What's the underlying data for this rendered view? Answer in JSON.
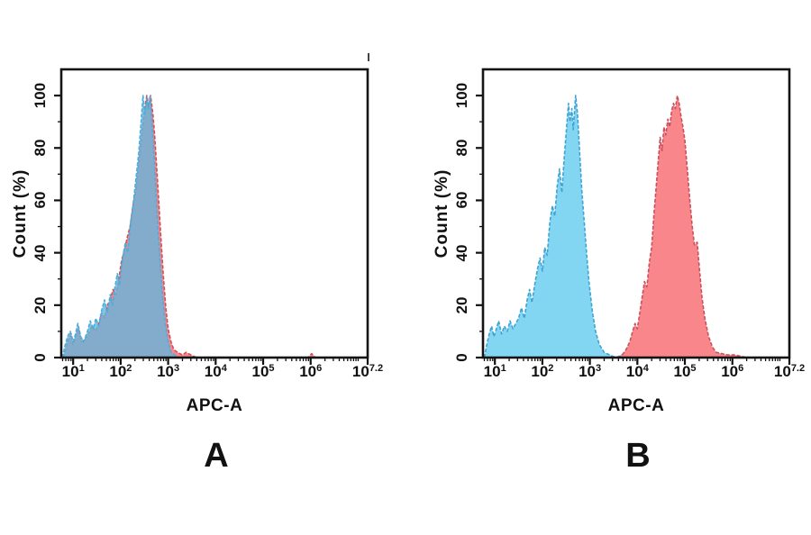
{
  "figure": {
    "background": "#ffffff",
    "text_color": "#111111"
  },
  "chart_data": [
    {
      "type": "area",
      "panel_label": "A",
      "xlabel": "APC-A",
      "ylabel": "Count (%)",
      "x_scale": "log10",
      "x_log_range": [
        0.75,
        7.2
      ],
      "y_range": [
        0,
        110
      ],
      "grid": false,
      "legend": "none",
      "x_major_ticks": [
        {
          "log": 1,
          "base": "10",
          "exp": "1"
        },
        {
          "log": 2,
          "base": "10",
          "exp": "2"
        },
        {
          "log": 3,
          "base": "10",
          "exp": "3"
        },
        {
          "log": 4,
          "base": "10",
          "exp": "4"
        },
        {
          "log": 5,
          "base": "10",
          "exp": "5"
        },
        {
          "log": 6,
          "base": "10",
          "exp": "6"
        },
        {
          "log": 7.2,
          "base": "10",
          "exp": "7.2"
        }
      ],
      "y_major_ticks": [
        "0",
        "20",
        "40",
        "60",
        "80",
        "100"
      ],
      "y_major_values": [
        0,
        20,
        40,
        60,
        80,
        100
      ],
      "y_minor_values": [
        10,
        30,
        50,
        70,
        90
      ],
      "series": [
        {
          "name": "red-histogram",
          "fill": "#F8868B",
          "edge": "#C9515D",
          "points": [
            [
              0.8,
              0
            ],
            [
              0.84,
              3
            ],
            [
              0.9,
              7
            ],
            [
              0.96,
              9
            ],
            [
              1.0,
              5
            ],
            [
              1.06,
              9
            ],
            [
              1.12,
              11
            ],
            [
              1.18,
              6
            ],
            [
              1.25,
              7
            ],
            [
              1.32,
              9
            ],
            [
              1.4,
              12
            ],
            [
              1.47,
              10
            ],
            [
              1.54,
              13
            ],
            [
              1.6,
              17
            ],
            [
              1.66,
              15
            ],
            [
              1.72,
              20
            ],
            [
              1.78,
              22
            ],
            [
              1.84,
              26
            ],
            [
              1.9,
              24
            ],
            [
              1.96,
              30
            ],
            [
              2.02,
              37
            ],
            [
              2.08,
              41
            ],
            [
              2.14,
              46
            ],
            [
              2.2,
              50
            ],
            [
              2.26,
              58
            ],
            [
              2.32,
              64
            ],
            [
              2.38,
              74
            ],
            [
              2.44,
              84
            ],
            [
              2.5,
              94
            ],
            [
              2.55,
              100
            ],
            [
              2.59,
              96
            ],
            [
              2.63,
              100
            ],
            [
              2.68,
              93
            ],
            [
              2.72,
              84
            ],
            [
              2.76,
              72
            ],
            [
              2.8,
              60
            ],
            [
              2.85,
              45
            ],
            [
              2.9,
              31
            ],
            [
              2.95,
              19
            ],
            [
              3.0,
              11
            ],
            [
              3.06,
              6
            ],
            [
              3.12,
              3
            ],
            [
              3.2,
              2
            ],
            [
              3.3,
              1
            ],
            [
              3.38,
              2
            ],
            [
              3.48,
              1
            ],
            [
              3.6,
              0
            ],
            [
              5.95,
              0
            ],
            [
              6.02,
              1.5
            ],
            [
              6.1,
              0
            ]
          ]
        },
        {
          "name": "blue-histogram",
          "fill": "rgba(100,180,220,0.80)",
          "edge": "#49AEDB",
          "points": [
            [
              0.78,
              0
            ],
            [
              0.82,
              4
            ],
            [
              0.88,
              8
            ],
            [
              0.94,
              10
            ],
            [
              1.0,
              6
            ],
            [
              1.05,
              9
            ],
            [
              1.1,
              13
            ],
            [
              1.16,
              8
            ],
            [
              1.22,
              6
            ],
            [
              1.3,
              10
            ],
            [
              1.36,
              14
            ],
            [
              1.42,
              11
            ],
            [
              1.48,
              15
            ],
            [
              1.54,
              12
            ],
            [
              1.6,
              18
            ],
            [
              1.66,
              22
            ],
            [
              1.72,
              17
            ],
            [
              1.78,
              24
            ],
            [
              1.83,
              20
            ],
            [
              1.88,
              27
            ],
            [
              1.93,
              32
            ],
            [
              1.98,
              28
            ],
            [
              2.04,
              38
            ],
            [
              2.1,
              44
            ],
            [
              2.15,
              40
            ],
            [
              2.2,
              50
            ],
            [
              2.26,
              58
            ],
            [
              2.32,
              68
            ],
            [
              2.38,
              78
            ],
            [
              2.43,
              90
            ],
            [
              2.47,
              100
            ],
            [
              2.51,
              93
            ],
            [
              2.55,
              99
            ],
            [
              2.58,
              95
            ],
            [
              2.62,
              100
            ],
            [
              2.66,
              90
            ],
            [
              2.7,
              78
            ],
            [
              2.74,
              64
            ],
            [
              2.79,
              48
            ],
            [
              2.84,
              34
            ],
            [
              2.89,
              22
            ],
            [
              2.94,
              13
            ],
            [
              3.0,
              6
            ],
            [
              3.06,
              2
            ],
            [
              3.14,
              1
            ],
            [
              3.22,
              0
            ]
          ]
        }
      ]
    },
    {
      "type": "area",
      "panel_label": "B",
      "xlabel": "APC-A",
      "ylabel": "Count (%)",
      "x_scale": "log10",
      "x_log_range": [
        0.75,
        7.2
      ],
      "y_range": [
        0,
        110
      ],
      "grid": false,
      "legend": "none",
      "x_major_ticks": [
        {
          "log": 1,
          "base": "10",
          "exp": "1"
        },
        {
          "log": 2,
          "base": "10",
          "exp": "2"
        },
        {
          "log": 3,
          "base": "10",
          "exp": "3"
        },
        {
          "log": 4,
          "base": "10",
          "exp": "4"
        },
        {
          "log": 5,
          "base": "10",
          "exp": "5"
        },
        {
          "log": 6,
          "base": "10",
          "exp": "6"
        },
        {
          "log": 7.2,
          "base": "10",
          "exp": "7.2"
        }
      ],
      "y_major_ticks": [
        "0",
        "20",
        "40",
        "60",
        "80",
        "100"
      ],
      "y_major_values": [
        0,
        20,
        40,
        60,
        80,
        100
      ],
      "y_minor_values": [
        10,
        30,
        50,
        70,
        90
      ],
      "series": [
        {
          "name": "blue-histogram",
          "fill": "#82D6F2",
          "edge": "#3FA3D2",
          "points": [
            [
              0.78,
              0
            ],
            [
              0.83,
              5
            ],
            [
              0.88,
              9
            ],
            [
              0.93,
              12
            ],
            [
              0.98,
              8
            ],
            [
              1.03,
              11
            ],
            [
              1.08,
              14
            ],
            [
              1.14,
              9
            ],
            [
              1.2,
              12
            ],
            [
              1.26,
              10
            ],
            [
              1.32,
              14
            ],
            [
              1.38,
              11
            ],
            [
              1.44,
              13
            ],
            [
              1.5,
              15
            ],
            [
              1.56,
              19
            ],
            [
              1.62,
              15
            ],
            [
              1.68,
              22
            ],
            [
              1.73,
              26
            ],
            [
              1.78,
              21
            ],
            [
              1.84,
              28
            ],
            [
              1.9,
              34
            ],
            [
              1.95,
              38
            ],
            [
              2.0,
              33
            ],
            [
              2.05,
              42
            ],
            [
              2.1,
              39
            ],
            [
              2.16,
              52
            ],
            [
              2.21,
              58
            ],
            [
              2.26,
              54
            ],
            [
              2.31,
              65
            ],
            [
              2.36,
              72
            ],
            [
              2.41,
              63
            ],
            [
              2.46,
              76
            ],
            [
              2.51,
              88
            ],
            [
              2.55,
              97
            ],
            [
              2.58,
              90
            ],
            [
              2.62,
              95
            ],
            [
              2.65,
              87
            ],
            [
              2.7,
              100
            ],
            [
              2.74,
              93
            ],
            [
              2.78,
              80
            ],
            [
              2.83,
              64
            ],
            [
              2.88,
              52
            ],
            [
              2.93,
              40
            ],
            [
              2.98,
              29
            ],
            [
              3.05,
              18
            ],
            [
              3.12,
              10
            ],
            [
              3.2,
              5
            ],
            [
              3.3,
              2
            ],
            [
              3.42,
              1
            ],
            [
              3.55,
              0
            ],
            [
              3.68,
              1
            ],
            [
              3.75,
              2
            ],
            [
              3.85,
              0
            ]
          ]
        },
        {
          "name": "red-histogram",
          "fill": "#F8868B",
          "edge": "#C9515D",
          "points": [
            [
              3.58,
              0
            ],
            [
              3.68,
              1
            ],
            [
              3.76,
              3
            ],
            [
              3.84,
              6
            ],
            [
              3.9,
              10
            ],
            [
              3.95,
              13
            ],
            [
              4.0,
              11
            ],
            [
              4.05,
              17
            ],
            [
              4.1,
              23
            ],
            [
              4.15,
              29
            ],
            [
              4.2,
              27
            ],
            [
              4.25,
              36
            ],
            [
              4.3,
              42
            ],
            [
              4.35,
              55
            ],
            [
              4.4,
              66
            ],
            [
              4.44,
              75
            ],
            [
              4.48,
              84
            ],
            [
              4.52,
              79
            ],
            [
              4.56,
              88
            ],
            [
              4.6,
              85
            ],
            [
              4.64,
              91
            ],
            [
              4.68,
              88
            ],
            [
              4.72,
              94
            ],
            [
              4.76,
              97
            ],
            [
              4.8,
              95
            ],
            [
              4.84,
              100
            ],
            [
              4.88,
              97
            ],
            [
              4.92,
              92
            ],
            [
              4.96,
              88
            ],
            [
              5.0,
              83
            ],
            [
              5.05,
              72
            ],
            [
              5.1,
              61
            ],
            [
              5.15,
              51
            ],
            [
              5.2,
              43
            ],
            [
              5.26,
              44
            ],
            [
              5.31,
              33
            ],
            [
              5.36,
              23
            ],
            [
              5.42,
              15
            ],
            [
              5.5,
              8
            ],
            [
              5.58,
              4
            ],
            [
              5.66,
              2
            ],
            [
              5.78,
              1.5
            ],
            [
              5.9,
              1
            ],
            [
              6.05,
              1
            ],
            [
              6.18,
              0.5
            ],
            [
              6.3,
              0
            ]
          ]
        }
      ]
    }
  ]
}
